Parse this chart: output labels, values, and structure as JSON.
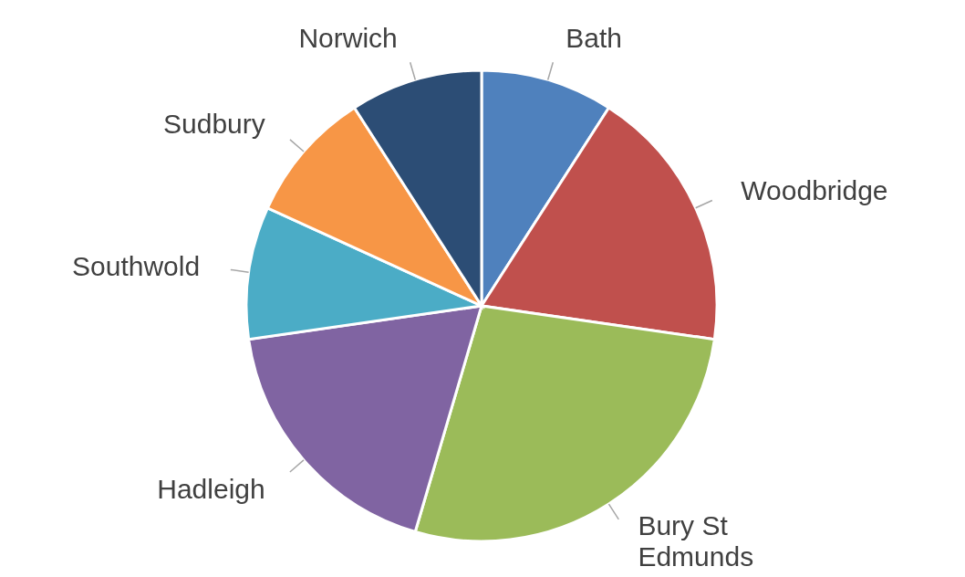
{
  "chart_data": {
    "type": "pie",
    "categories": [
      "Bath",
      "Woodbridge",
      "Bury St Edmunds",
      "Hadleigh",
      "Southwold",
      "Sudbury",
      "Norwich"
    ],
    "values": [
      9.09,
      18.18,
      27.28,
      18.18,
      9.09,
      9.09,
      9.09
    ],
    "colors": [
      "#4f81bd",
      "#c0504d",
      "#9bbb59",
      "#8064a2",
      "#4bacc6",
      "#f79646",
      "#2c4d75"
    ],
    "legend": false
  }
}
